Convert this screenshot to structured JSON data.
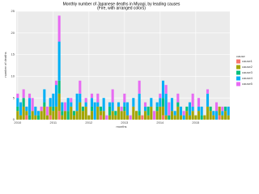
{
  "chart_data": {
    "type": "stacked_bar",
    "title": "Monthly number of Japanese deaths in Miyagi, by leading causes",
    "subtitle": "(Fire, with arranged colors)",
    "x_label": "months",
    "y_label": "number of deaths",
    "legend_title": "cause",
    "categories": [
      "2010",
      null,
      null,
      null,
      null,
      null,
      null,
      null,
      null,
      null,
      null,
      null,
      "2011",
      null,
      null,
      null,
      null,
      null,
      null,
      null,
      null,
      null,
      null,
      null,
      "2012",
      null,
      null,
      null,
      null,
      null,
      null,
      null,
      null,
      null,
      null,
      null,
      "2013",
      null,
      null,
      null,
      null,
      null,
      null,
      null,
      null,
      null,
      null,
      null,
      "2014",
      null,
      null,
      null,
      null,
      null,
      null,
      null,
      null,
      null,
      null,
      null,
      "2015",
      null,
      null,
      null,
      null,
      null,
      null,
      null,
      null,
      null,
      null,
      null
    ],
    "series": [
      {
        "name": "cause1",
        "color": "#F8766D",
        "values": [
          0,
          0,
          0,
          1,
          0,
          0,
          0,
          0,
          0,
          0,
          0,
          1,
          0,
          0,
          2,
          0,
          0,
          0,
          0,
          0,
          0,
          0,
          0,
          0,
          0,
          0,
          0,
          0,
          1,
          0,
          0,
          0,
          0,
          0,
          0,
          0,
          0,
          0,
          0,
          0,
          0,
          0,
          1,
          0,
          0,
          0,
          0,
          0,
          0,
          1,
          0,
          0,
          0,
          0,
          0,
          0,
          0,
          0,
          0,
          0,
          0,
          0,
          0,
          0,
          0,
          0,
          0,
          0,
          1,
          0,
          0,
          0
        ]
      },
      {
        "name": "cause2",
        "color": "#A3A500",
        "values": [
          2,
          1,
          3,
          1,
          0,
          2,
          1,
          0,
          2,
          3,
          1,
          2,
          2,
          3,
          4,
          1,
          2,
          0,
          3,
          1,
          2,
          4,
          2,
          3,
          1,
          2,
          0,
          3,
          1,
          2,
          0,
          1,
          2,
          1,
          3,
          2,
          2,
          1,
          0,
          3,
          2,
          1,
          0,
          2,
          1,
          3,
          0,
          2,
          3,
          2,
          1,
          0,
          2,
          1,
          3,
          1,
          0,
          2,
          1,
          2,
          1,
          2,
          0,
          1,
          3,
          2,
          1,
          0,
          2,
          1,
          2,
          1
        ]
      },
      {
        "name": "cause3",
        "color": "#00BF7D",
        "values": [
          1,
          0,
          2,
          0,
          1,
          0,
          0,
          1,
          0,
          1,
          0,
          0,
          1,
          0,
          3,
          1,
          0,
          2,
          0,
          1,
          0,
          0,
          1,
          0,
          0,
          1,
          0,
          0,
          1,
          0,
          0,
          2,
          0,
          1,
          0,
          0,
          1,
          0,
          0,
          0,
          0,
          1,
          0,
          0,
          2,
          0,
          0,
          1,
          0,
          2,
          0,
          1,
          0,
          0,
          1,
          0,
          0,
          1,
          0,
          0,
          0,
          0,
          1,
          0,
          0,
          1,
          0,
          0,
          0,
          0,
          1,
          0
        ]
      },
      {
        "name": "cause4",
        "color": "#00B0F6",
        "values": [
          2,
          3,
          0,
          1,
          4,
          0,
          2,
          1,
          0,
          3,
          0,
          2,
          3,
          5,
          9,
          2,
          0,
          3,
          1,
          0,
          4,
          2,
          0,
          1,
          0,
          2,
          4,
          1,
          0,
          3,
          0,
          1,
          2,
          0,
          1,
          0,
          1,
          3,
          0,
          2,
          0,
          4,
          0,
          1,
          0,
          2,
          0,
          1,
          2,
          4,
          5,
          0,
          3,
          1,
          0,
          2,
          1,
          0,
          3,
          1,
          0,
          1,
          2,
          0,
          3,
          0,
          1,
          2,
          0,
          1,
          0,
          2
        ]
      },
      {
        "name": "cause5",
        "color": "#E76BF3",
        "values": [
          1,
          0,
          2,
          0,
          1,
          3,
          0,
          0,
          1,
          0,
          2,
          0,
          0,
          1,
          6,
          0,
          2,
          0,
          1,
          0,
          0,
          3,
          0,
          1,
          0,
          1,
          0,
          2,
          0,
          0,
          1,
          0,
          3,
          0,
          0,
          1,
          2,
          0,
          1,
          0,
          0,
          3,
          0,
          1,
          0,
          0,
          2,
          0,
          1,
          0,
          2,
          3,
          0,
          0,
          2,
          0,
          1,
          0,
          0,
          3,
          0,
          2,
          0,
          0,
          1,
          0,
          0,
          2,
          0,
          1,
          0,
          0
        ]
      }
    ],
    "ylim": [
      0,
      25
    ],
    "yticks": [
      0,
      5,
      10,
      15,
      20,
      25
    ],
    "grid": true,
    "legend_position": "right"
  }
}
